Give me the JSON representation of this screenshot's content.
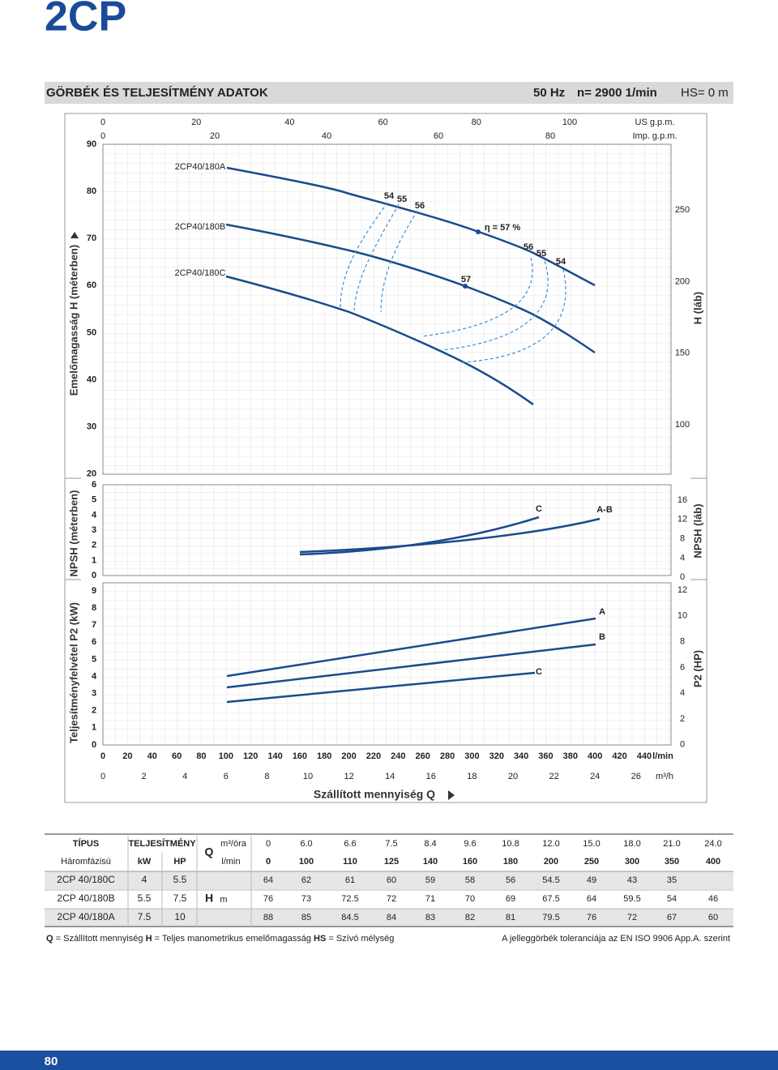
{
  "header": {
    "title": "2CP"
  },
  "band": {
    "title": "GÖRBÉK ÉS TELJESÍTMÉNY ADATOK",
    "frequency": "50 Hz",
    "speed": "n= 2900 1/min",
    "suction": "HS= 0 m"
  },
  "chart": {
    "us_gpm": {
      "label": "US g.p.m.",
      "ticks": [
        "0",
        "20",
        "40",
        "60",
        "80",
        "100"
      ]
    },
    "imp_gpm": {
      "label": "Imp. g.p.m.",
      "ticks": [
        "0",
        "20",
        "40",
        "60",
        "80"
      ]
    },
    "lmin": {
      "label": "l/min",
      "ticks": [
        "0",
        "20",
        "40",
        "60",
        "80",
        "100",
        "120",
        "140",
        "160",
        "180",
        "200",
        "220",
        "240",
        "260",
        "280",
        "300",
        "320",
        "340",
        "360",
        "380",
        "400",
        "420",
        "440"
      ]
    },
    "m3h": {
      "label": "m³/h",
      "ticks": [
        "0",
        "2",
        "4",
        "6",
        "8",
        "10",
        "12",
        "14",
        "16",
        "18",
        "20",
        "22",
        "24",
        "26"
      ]
    },
    "x_title": "Szállított mennyiség Q",
    "h_axis": {
      "title": "Emelőmagasság H (méterben)",
      "ticks": [
        "90",
        "80",
        "70",
        "60",
        "50",
        "40",
        "30",
        "20"
      ]
    },
    "h_ft_axis": {
      "title": "H (láb)",
      "ticks": [
        "250",
        "200",
        "150",
        "100"
      ]
    },
    "npsh_axis": {
      "title": "NPSH (méterben)",
      "ticks": [
        "6",
        "5",
        "4",
        "3",
        "2",
        "1",
        "0"
      ]
    },
    "npsh_ft_axis": {
      "title": "NPSH (láb)",
      "ticks": [
        "16",
        "12",
        "8",
        "4",
        "0"
      ]
    },
    "p2_axis": {
      "title": "Teljesítményfelvétel P2 (kW)",
      "ticks": [
        "9",
        "8",
        "7",
        "6",
        "5",
        "4",
        "3",
        "2",
        "1",
        "0"
      ]
    },
    "p2_hp_axis": {
      "title": "P2 (HP)",
      "ticks": [
        "12",
        "10",
        "8",
        "6",
        "4",
        "2",
        "0"
      ]
    },
    "curve_labels": [
      "2CP40/180A",
      "2CP40/180B",
      "2CP40/180C"
    ],
    "efficiency_labels": [
      "54",
      "55",
      "56",
      "57",
      "η = 57 %",
      "56",
      "55",
      "54"
    ],
    "npsh_labels": [
      "C",
      "A-B"
    ],
    "p2_labels": [
      "A",
      "B",
      "C"
    ]
  },
  "table": {
    "headers": {
      "type": "TÍPUS",
      "power": "TELJESÍTMÉNY",
      "phase": "Háromfázisú",
      "kw": "kW",
      "hp": "HP",
      "q": "Q",
      "m3h_unit": "m³/óra",
      "lmin_unit": "l/min",
      "h": "H",
      "h_unit": "m"
    },
    "m3h": [
      "0",
      "6.0",
      "6.6",
      "7.5",
      "8.4",
      "9.6",
      "10.8",
      "12.0",
      "15.0",
      "18.0",
      "21.0",
      "24.0"
    ],
    "lmin": [
      "0",
      "100",
      "110",
      "125",
      "140",
      "160",
      "180",
      "200",
      "250",
      "300",
      "350",
      "400"
    ],
    "rows": [
      {
        "type": "2CP 40/180C",
        "kw": "4",
        "hp": "5.5",
        "h": [
          "64",
          "62",
          "61",
          "60",
          "59",
          "58",
          "56",
          "54.5",
          "49",
          "43",
          "35"
        ]
      },
      {
        "type": "2CP 40/180B",
        "kw": "5.5",
        "hp": "7.5",
        "h": [
          "76",
          "73",
          "72.5",
          "72",
          "71",
          "70",
          "69",
          "67.5",
          "64",
          "59.5",
          "54",
          "46"
        ]
      },
      {
        "type": "2CP 40/180A",
        "kw": "7.5",
        "hp": "10",
        "h": [
          "88",
          "85",
          "84.5",
          "84",
          "83",
          "82",
          "81",
          "79.5",
          "76",
          "72",
          "67",
          "60"
        ]
      }
    ]
  },
  "footer": {
    "legend": [
      "Q",
      "= Szállított mennyiség",
      "H",
      "= Teljes manometrikus emelőmagasság",
      "HS",
      "= Szívó mélység"
    ],
    "tolerance": "A jelleggörbék toleranciája az EN ISO 9906 App.A. szerint"
  },
  "page_number": "80"
}
